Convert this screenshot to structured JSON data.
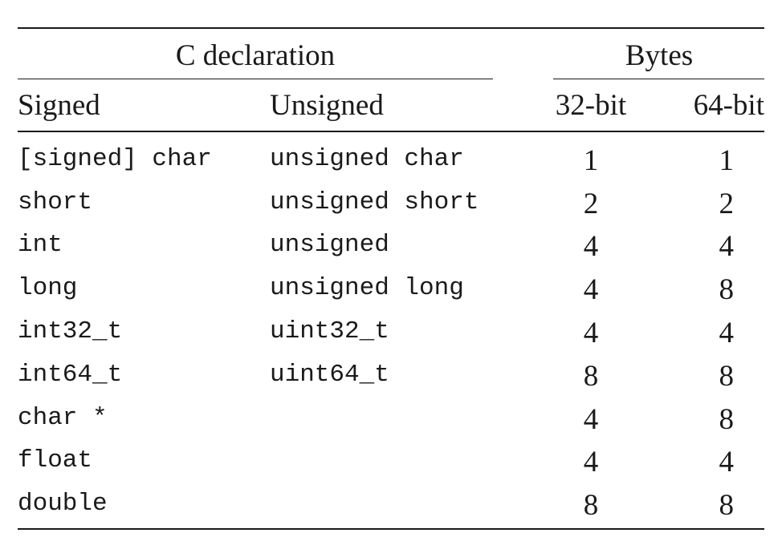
{
  "table": {
    "header_groups": {
      "declaration": "C declaration",
      "bytes": "Bytes"
    },
    "columns": {
      "signed": "Signed",
      "unsigned": "Unsigned",
      "bit32": "32-bit",
      "bit64": "64-bit"
    },
    "rows": [
      {
        "signed": "[signed] char",
        "unsigned": "unsigned char",
        "b32": "1",
        "b64": "1"
      },
      {
        "signed": "short",
        "unsigned": "unsigned short",
        "b32": "2",
        "b64": "2"
      },
      {
        "signed": "int",
        "unsigned": "unsigned",
        "b32": "4",
        "b64": "4"
      },
      {
        "signed": "long",
        "unsigned": "unsigned long",
        "b32": "4",
        "b64": "8"
      },
      {
        "signed": "int32_t",
        "unsigned": "uint32_t",
        "b32": "4",
        "b64": "4"
      },
      {
        "signed": "int64_t",
        "unsigned": "uint64_t",
        "b32": "8",
        "b64": "8"
      },
      {
        "signed": "char *",
        "unsigned": "",
        "b32": "4",
        "b64": "8"
      },
      {
        "signed": "float",
        "unsigned": "",
        "b32": "4",
        "b64": "4"
      },
      {
        "signed": "double",
        "unsigned": "",
        "b32": "8",
        "b64": "8"
      }
    ]
  }
}
